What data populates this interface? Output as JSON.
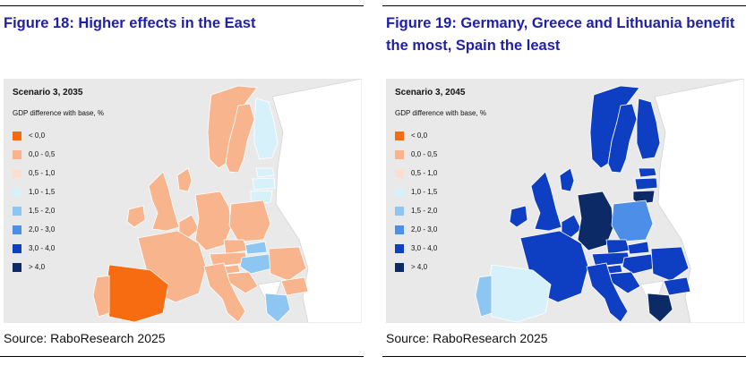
{
  "legend_title": "GDP difference with base, %",
  "legend": [
    {
      "label": "< 0,0",
      "color": "#f76c10"
    },
    {
      "label": "0,0 - 0,5",
      "color": "#f7b48d"
    },
    {
      "label": "0,5 - 1,0",
      "color": "#fbe0d2"
    },
    {
      "label": "1,0 - 1,5",
      "color": "#d7f1fb"
    },
    {
      "label": "1,5 - 2,0",
      "color": "#8ec6f2"
    },
    {
      "label": "2,0 - 3,0",
      "color": "#4d8ee8"
    },
    {
      "label": "3,0 - 4,0",
      "color": "#0e3fc2"
    },
    {
      "label": "> 4,0",
      "color": "#0b2a66"
    }
  ],
  "figures": [
    {
      "title": "Figure 18: Higher effects in the East",
      "scenario": "Scenario 3, 2035",
      "source": "Source: RaboResearch 2025",
      "country_classes": {
        "spain": 0,
        "portugal": 1,
        "france": 1,
        "germany": 1,
        "italy": 1,
        "uk": 1,
        "ireland": 1,
        "benelux": 1,
        "poland": 1,
        "czechia": 1,
        "austria": 1,
        "slovenia": 1,
        "croatia": 1,
        "romania": 1,
        "bulgaria": 1,
        "sweden": 1,
        "denmark": 1,
        "norway": 1,
        "finland": 3,
        "lithuania": 3,
        "latvia": 3,
        "estonia": 3,
        "slovakia": 4,
        "hungary": 4,
        "greece": 4
      }
    },
    {
      "title": "Figure 19: Germany, Greece and Lithuania benefit the most, Spain the least",
      "scenario": "Scenario 3, 2045",
      "source": "Source: RaboResearch 2025",
      "country_classes": {
        "spain": 3,
        "portugal": 4,
        "france": 6,
        "germany": 7,
        "italy": 6,
        "uk": 6,
        "ireland": 6,
        "benelux": 6,
        "poland": 5,
        "czechia": 6,
        "austria": 6,
        "slovenia": 6,
        "croatia": 6,
        "romania": 6,
        "bulgaria": 6,
        "sweden": 6,
        "denmark": 6,
        "norway": 6,
        "finland": 6,
        "lithuania": 7,
        "latvia": 6,
        "estonia": 6,
        "slovakia": 6,
        "hungary": 6,
        "greece": 7
      }
    }
  ]
}
